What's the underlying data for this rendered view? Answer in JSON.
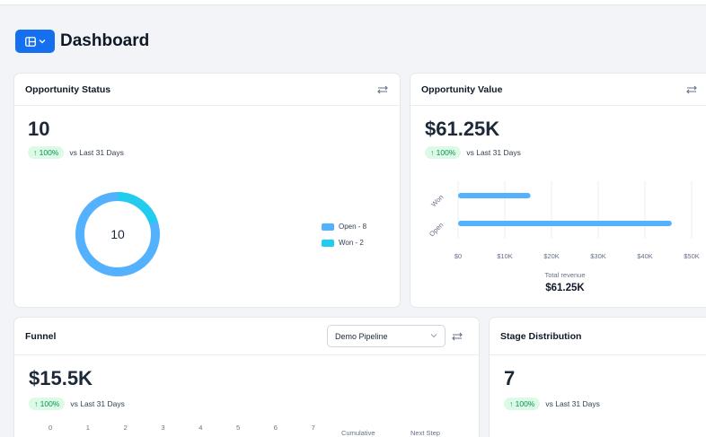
{
  "header": {
    "title": "Dashboard",
    "toggle_icon": "layout-panel-icon"
  },
  "colors": {
    "accent": "#1570ef",
    "open": "#53b1fd",
    "won": "#22ccee",
    "badge_bg": "#dcfae6",
    "badge_text": "#079455"
  },
  "opportunity_status": {
    "title": "Opportunity Status",
    "value": "10",
    "delta_badge": "↑ 100%",
    "delta_label": "vs Last 31 Days",
    "donut_center": "10",
    "legend": [
      {
        "label": "Open - 8",
        "value": 8,
        "color": "#53b1fd"
      },
      {
        "label": "Won - 2",
        "value": 2,
        "color": "#22ccee"
      }
    ]
  },
  "opportunity_value": {
    "title": "Opportunity Value",
    "value": "$61.25K",
    "delta_badge": "↑ 100%",
    "delta_label": "vs Last 31 Days",
    "footer_label": "Total revenue",
    "footer_value": "$61.25K"
  },
  "funnel": {
    "title": "Funnel",
    "pipeline_select": "Demo Pipeline",
    "value": "$15.5K",
    "delta_badge": "↑ 100%",
    "delta_label": "vs Last 31 Days",
    "axis_ticks": [
      "0",
      "1",
      "2",
      "3",
      "4",
      "5",
      "6",
      "7"
    ],
    "col_cumulative": "Cumulative",
    "col_next_step": "Next Step"
  },
  "stage_distribution": {
    "title": "Stage Distribution",
    "value": "7",
    "delta_badge": "↑ 100%",
    "delta_label": "vs Last 31 Days"
  },
  "chart_data": {
    "type": "bar",
    "orientation": "horizontal",
    "categories": [
      "Won",
      "Open"
    ],
    "values": [
      15500,
      45750
    ],
    "xlabel": "Total revenue",
    "xlim": [
      0,
      50000
    ],
    "x_ticks": [
      "$0",
      "$10K",
      "$20K",
      "$30K",
      "$40K",
      "$50K"
    ],
    "grid": true,
    "color": "#53b1fd"
  }
}
